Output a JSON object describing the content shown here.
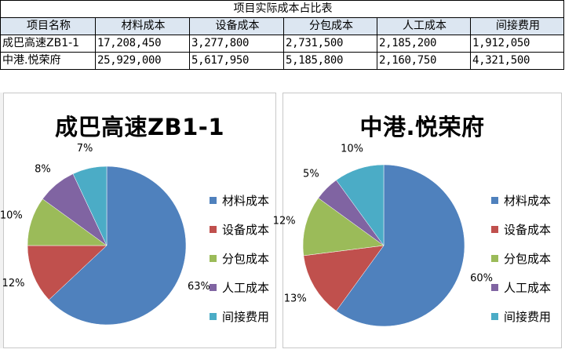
{
  "table": {
    "title": "项目实际成本占比表",
    "headers": [
      "项目名称",
      "材料成本",
      "设备成本",
      "分包成本",
      "人工成本",
      "间接费用"
    ],
    "rows": [
      [
        "成巴高速ZB1-1",
        "17,208,450",
        "3,277,800",
        "2,731,500",
        "2,185,200",
        "1,912,050"
      ],
      [
        "中港.悦荣府",
        "25,929,000",
        "5,617,950",
        "5,185,800",
        "2,160,750",
        "4,321,500"
      ]
    ]
  },
  "colors": [
    "#4f81bd",
    "#c0504d",
    "#9bbb59",
    "#8064a2",
    "#4bacc6"
  ],
  "chart_data": [
    {
      "type": "pie",
      "title": "成巴高速ZB1-1",
      "categories": [
        "材料成本",
        "设备成本",
        "分包成本",
        "人工成本",
        "间接费用"
      ],
      "values": [
        17208450,
        3277800,
        2731500,
        2185200,
        1912050
      ],
      "labels": [
        "63%",
        "12%",
        "10%",
        "8%",
        "7%"
      ],
      "legend_position": "right"
    },
    {
      "type": "pie",
      "title": "中港.悦荣府",
      "categories": [
        "材料成本",
        "设备成本",
        "分包成本",
        "人工成本",
        "间接费用"
      ],
      "values": [
        25929000,
        5617950,
        5185800,
        2160750,
        4321500
      ],
      "labels": [
        "60%",
        "13%",
        "12%",
        "5%",
        "10%"
      ],
      "legend_position": "right"
    }
  ]
}
